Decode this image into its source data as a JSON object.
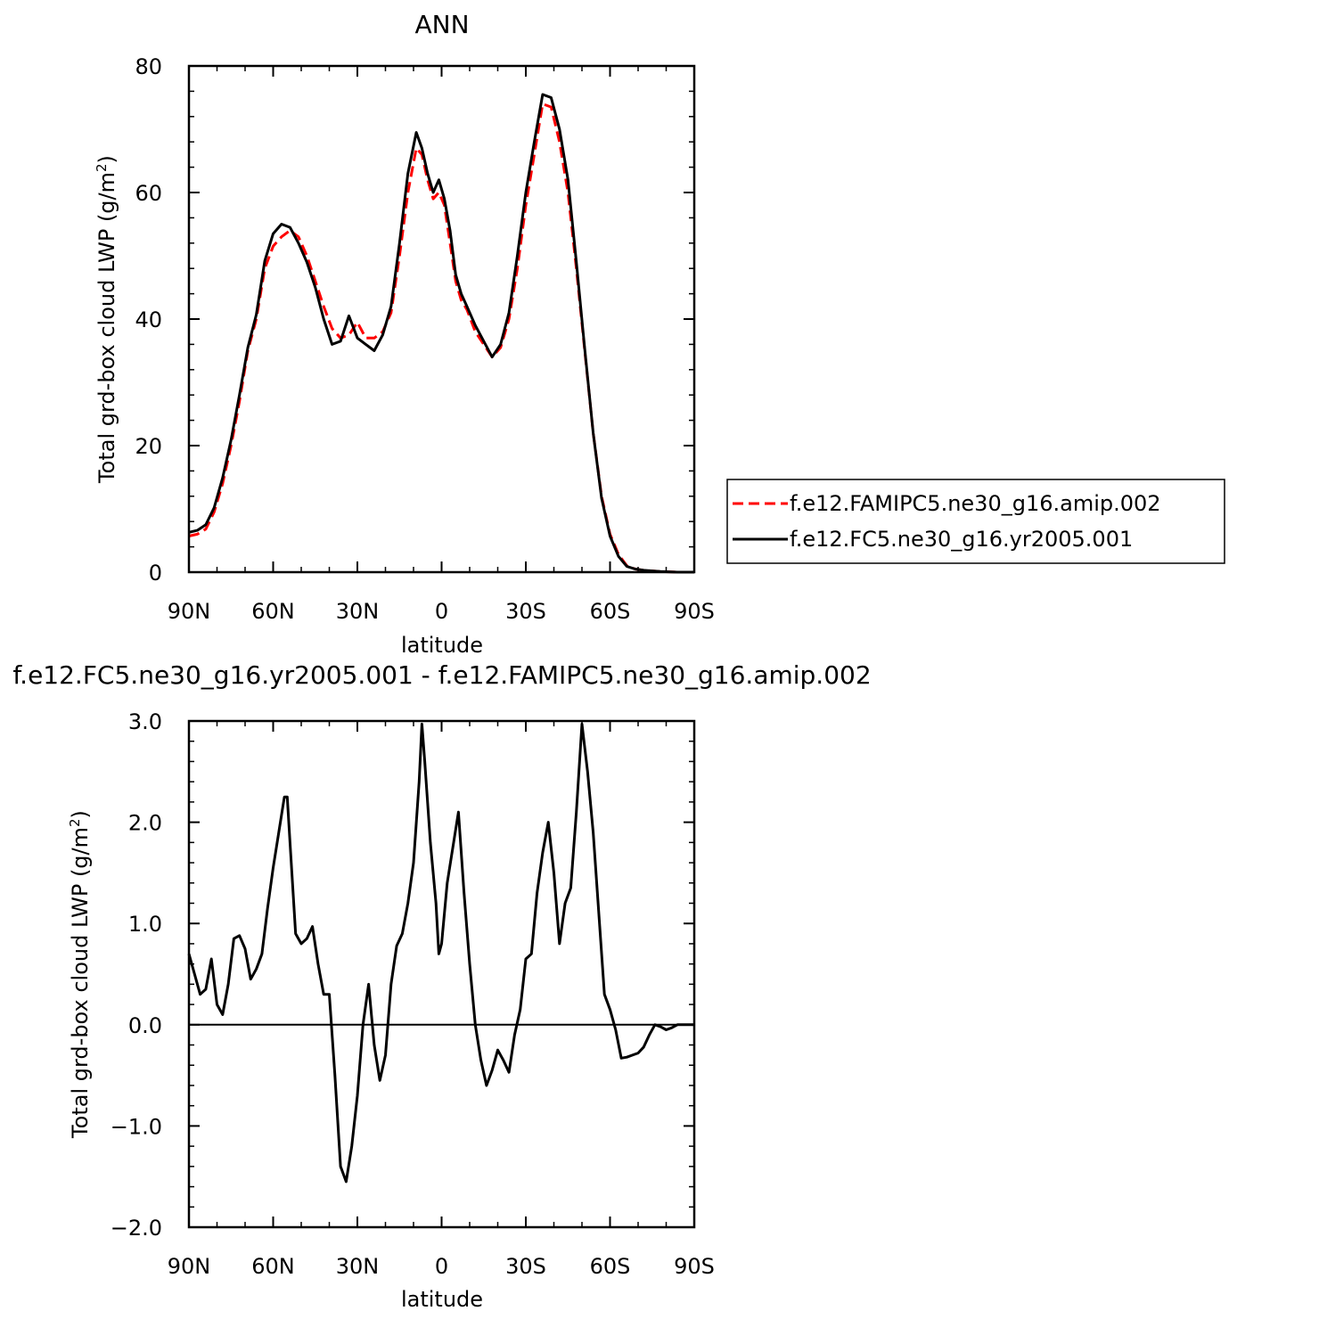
{
  "chart_data": [
    {
      "type": "line",
      "title": "ANN",
      "xlabel": "latitude",
      "ylabel": "Total grd-box cloud LWP (g/m²)",
      "ylabel_parts": {
        "main": "Total grd-box cloud LWP (g/m",
        "sup": "2",
        "end": ")"
      },
      "xlim": [
        90,
        -90
      ],
      "ylim": [
        0,
        80
      ],
      "x_ticks": [
        90,
        60,
        30,
        0,
        -30,
        -60,
        -90
      ],
      "x_tick_labels": [
        "90N",
        "60N",
        "30N",
        "0",
        "30S",
        "60S",
        "90S"
      ],
      "y_ticks": [
        0,
        20,
        40,
        60,
        80
      ],
      "y_tick_labels": [
        "0",
        "20",
        "40",
        "60",
        "80"
      ],
      "grid": false,
      "legend_position": "right",
      "series": [
        {
          "name": "f.e12.FAMIPC5.ne30_g16.amip.002",
          "color": "#ff0000",
          "dash": "dashed",
          "x": [
            90,
            87,
            84,
            81,
            78,
            75,
            72,
            69,
            66,
            63,
            60,
            57,
            54,
            51,
            48,
            45,
            42,
            39,
            36,
            33,
            30,
            27,
            24,
            21,
            18,
            15,
            12,
            9,
            7,
            5,
            3,
            1,
            -1,
            -3,
            -5,
            -7,
            -9,
            -12,
            -15,
            -18,
            -21,
            -24,
            -27,
            -30,
            -33,
            -36,
            -39,
            -42,
            -45,
            -48,
            -51,
            -54,
            -57,
            -60,
            -63,
            -66,
            -69,
            -72,
            -75,
            -78,
            -81,
            -84,
            -87,
            -90
          ],
          "y": [
            5.7,
            6.0,
            6.8,
            9.5,
            14.0,
            20.0,
            27.0,
            35.0,
            40.0,
            48.0,
            51.5,
            53.0,
            54.0,
            53.0,
            50.0,
            46.0,
            42.0,
            38.5,
            37.0,
            37.5,
            39.5,
            37.0,
            37.0,
            38.0,
            41.0,
            50.0,
            60.0,
            67.0,
            66.0,
            62.0,
            59.0,
            60.0,
            58.0,
            52.0,
            46.0,
            43.0,
            41.5,
            38.0,
            36.0,
            34.0,
            35.5,
            40.0,
            48.0,
            58.0,
            66.0,
            74.0,
            73.5,
            68.0,
            60.0,
            48.0,
            35.0,
            22.0,
            12.0,
            6.0,
            2.8,
            1.0,
            0.5,
            0.3,
            0.2,
            0.1,
            0.05,
            0.0,
            0.0,
            0.0
          ]
        },
        {
          "name": "f.e12.FC5.ne30_g16.yr2005.001",
          "color": "#000000",
          "dash": "solid",
          "x": [
            90,
            87,
            84,
            81,
            78,
            75,
            72,
            69,
            66,
            63,
            60,
            57,
            54,
            51,
            48,
            45,
            42,
            39,
            36,
            33,
            30,
            27,
            24,
            21,
            18,
            15,
            12,
            9,
            7,
            5,
            3,
            1,
            -1,
            -3,
            -5,
            -7,
            -9,
            -12,
            -15,
            -18,
            -21,
            -24,
            -27,
            -30,
            -33,
            -36,
            -39,
            -42,
            -45,
            -48,
            -51,
            -54,
            -57,
            -60,
            -63,
            -66,
            -69,
            -72,
            -75,
            -78,
            -81,
            -84,
            -87,
            -90
          ],
          "y": [
            6.3,
            6.6,
            7.5,
            10.2,
            14.9,
            20.9,
            28.0,
            35.5,
            40.7,
            49.2,
            53.5,
            55.0,
            54.5,
            52.0,
            49.0,
            45.0,
            40.0,
            36.0,
            36.5,
            40.5,
            37.0,
            36.0,
            35.0,
            37.5,
            42.0,
            52.0,
            63.0,
            69.5,
            67.0,
            63.0,
            60.0,
            62.0,
            59.0,
            54.0,
            47.0,
            44.0,
            42.0,
            39.0,
            36.5,
            34.0,
            36.0,
            41.0,
            50.0,
            60.0,
            68.0,
            75.5,
            75.0,
            70.0,
            62.0,
            49.0,
            35.3,
            22.0,
            11.7,
            5.7,
            2.5,
            0.9,
            0.5,
            0.3,
            0.2,
            0.1,
            0.05,
            0.0,
            0.0,
            0.0
          ]
        }
      ]
    },
    {
      "type": "line",
      "title": "f.e12.FC5.ne30_g16.yr2005.001 - f.e12.FAMIPC5.ne30_g16.amip.002",
      "xlabel": "latitude",
      "ylabel": "Total grd-box cloud LWP (g/m²)",
      "ylabel_parts": {
        "main": "Total grd-box cloud LWP (g/m",
        "sup": "2",
        "end": ")"
      },
      "xlim": [
        90,
        -90
      ],
      "ylim": [
        -2.0,
        3.0
      ],
      "x_ticks": [
        90,
        60,
        30,
        0,
        -30,
        -60,
        -90
      ],
      "x_tick_labels": [
        "90N",
        "60N",
        "30N",
        "0",
        "30S",
        "60S",
        "90S"
      ],
      "y_ticks": [
        -2.0,
        -1.0,
        0.0,
        1.0,
        2.0,
        3.0
      ],
      "y_tick_labels": [
        "−2.0",
        "−1.0",
        "0.0",
        "1.0",
        "2.0",
        "3.0"
      ],
      "grid": false,
      "reference_line": 0.0,
      "series": [
        {
          "color": "#000000",
          "dash": "solid",
          "x": [
            90,
            88,
            86,
            84,
            82,
            80,
            78,
            76,
            74,
            72,
            70,
            68,
            66,
            64,
            62,
            60,
            58,
            56,
            55,
            54,
            52,
            50,
            48,
            46,
            44,
            42,
            40,
            38,
            36,
            34,
            32,
            30,
            28,
            26,
            24,
            22,
            20,
            18,
            16,
            14,
            12,
            10,
            8,
            7,
            6,
            4,
            2,
            1,
            0,
            -2,
            -4,
            -6,
            -8,
            -10,
            -12,
            -14,
            -16,
            -18,
            -20,
            -22,
            -24,
            -26,
            -28,
            -30,
            -32,
            -34,
            -36,
            -38,
            -40,
            -42,
            -44,
            -46,
            -48,
            -50,
            -52,
            -54,
            -56,
            -58,
            -60,
            -62,
            -64,
            -66,
            -68,
            -70,
            -72,
            -74,
            -76,
            -78,
            -80,
            -82,
            -84,
            -86,
            -88,
            -90
          ],
          "y": [
            0.7,
            0.5,
            0.3,
            0.35,
            0.65,
            0.2,
            0.1,
            0.4,
            0.85,
            0.88,
            0.75,
            0.45,
            0.55,
            0.7,
            1.15,
            1.55,
            1.9,
            2.25,
            2.25,
            1.8,
            0.9,
            0.8,
            0.85,
            0.97,
            0.6,
            0.3,
            0.3,
            -0.5,
            -1.4,
            -1.55,
            -1.2,
            -0.7,
            0.0,
            0.4,
            -0.2,
            -0.55,
            -0.3,
            0.4,
            0.78,
            0.9,
            1.2,
            1.6,
            2.4,
            2.97,
            2.6,
            1.8,
            1.2,
            0.7,
            0.8,
            1.4,
            1.75,
            2.1,
            1.3,
            0.6,
            0.0,
            -0.35,
            -0.6,
            -0.45,
            -0.25,
            -0.35,
            -0.47,
            -0.1,
            0.15,
            0.65,
            0.7,
            1.3,
            1.7,
            2.0,
            1.5,
            0.8,
            1.2,
            1.35,
            2.1,
            2.97,
            2.5,
            1.9,
            1.1,
            0.3,
            0.15,
            -0.05,
            -0.33,
            -0.32,
            -0.3,
            -0.28,
            -0.22,
            -0.1,
            0.0,
            -0.02,
            -0.05,
            -0.03,
            0.0,
            0.0,
            0.0,
            0.0
          ]
        }
      ]
    }
  ]
}
